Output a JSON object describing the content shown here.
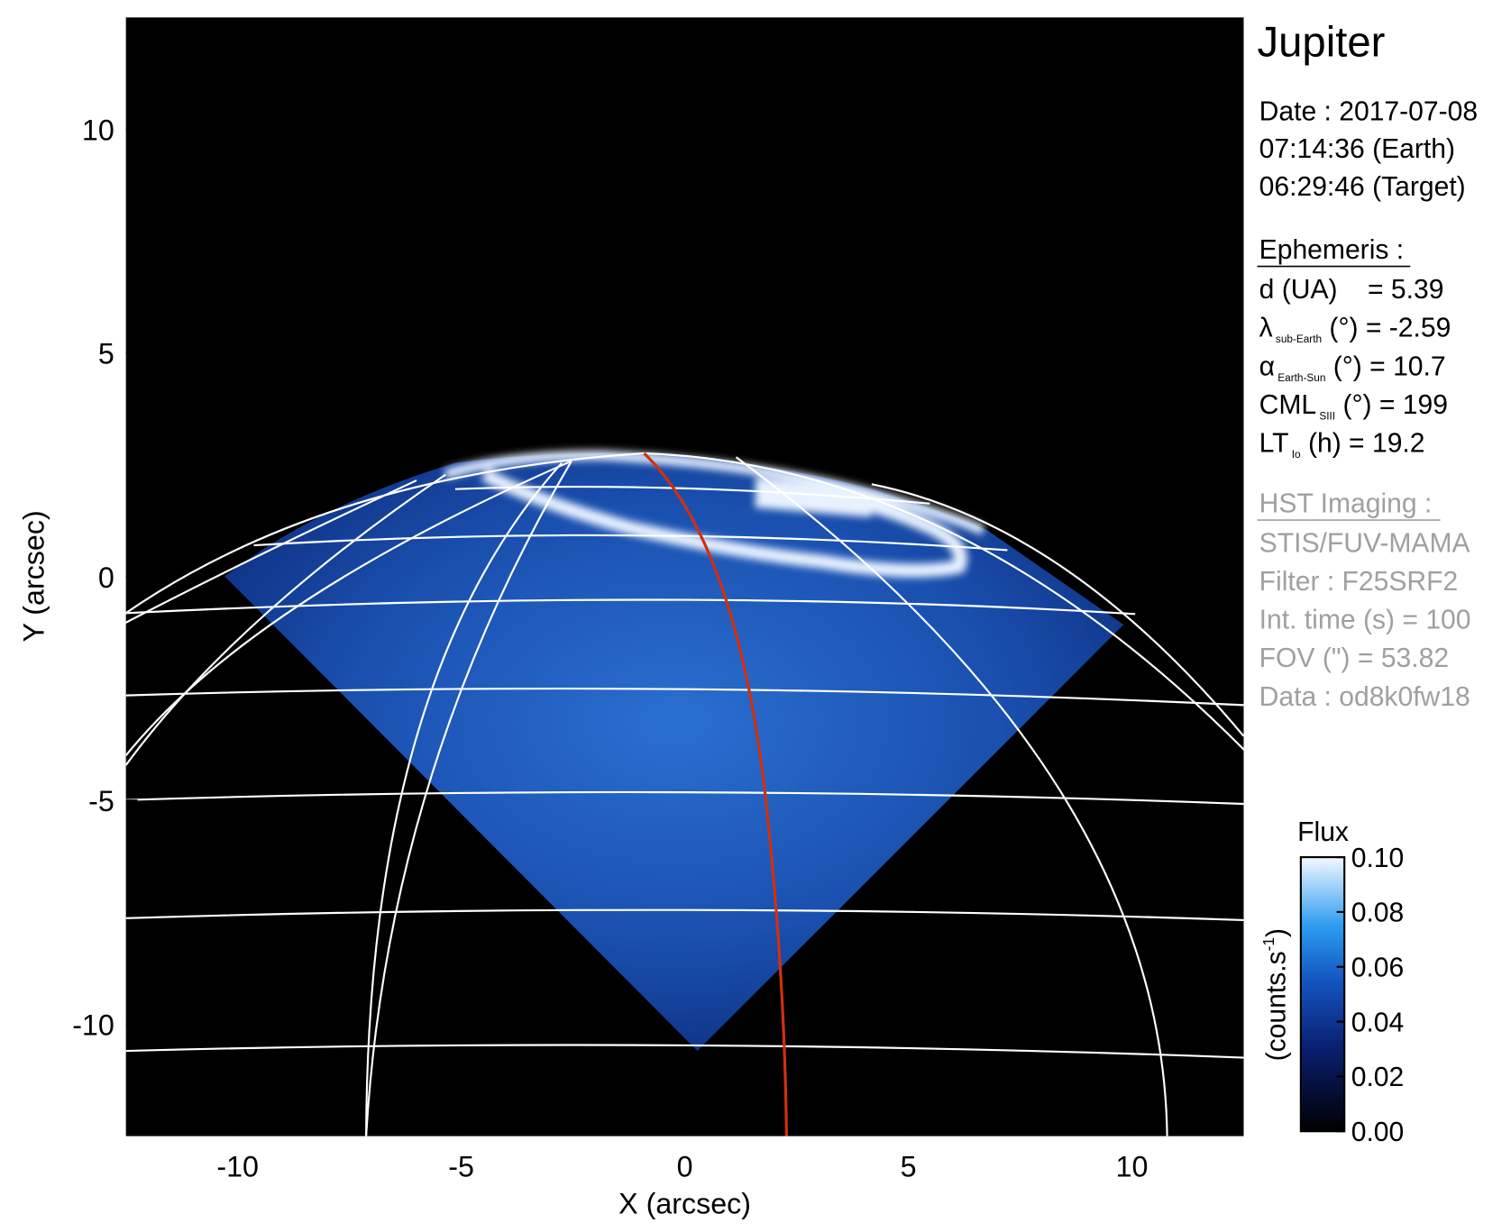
{
  "chart_data": {
    "type": "image",
    "xlabel": "X (arcsec)",
    "ylabel": "Y (arcsec)",
    "xlim": [
      -12.5,
      12.5
    ],
    "ylim": [
      -12.5,
      12.5
    ],
    "xticks": [
      -10,
      -5,
      0,
      5,
      10
    ],
    "yticks": [
      -10,
      -5,
      0,
      5,
      10
    ],
    "colorbar": {
      "title": "Flux",
      "label_parts": [
        "(counts.s",
        "-1",
        ")"
      ],
      "lim": [
        0,
        0.1
      ],
      "ticks": [
        {
          "value": 0,
          "label": "0.00"
        },
        {
          "value": 0.02,
          "label": "0.02"
        },
        {
          "value": 0.04,
          "label": "0.04"
        },
        {
          "value": 0.06,
          "label": "0.06"
        },
        {
          "value": 0.08,
          "label": "0.08"
        },
        {
          "value": 0.1,
          "label": "0.10"
        }
      ]
    }
  },
  "info": {
    "title": "Jupiter",
    "date_lines": [
      "Date : 2017-07-08",
      "07:14:36 (Earth)",
      "06:29:46 (Target)"
    ],
    "ephemeris": {
      "heading": "Ephemeris :",
      "lines": [
        {
          "text": "d (UA)    = 5.39"
        },
        {
          "symbol": "λ",
          "subscript": "sub-Earth",
          "text": " (°) = -2.59"
        },
        {
          "symbol": "α",
          "subscript": "Earth-Sun",
          "text": " (°) = 10.7"
        },
        {
          "symbol": "CML",
          "subscript": "SIII",
          "text": " (°) = 199"
        },
        {
          "symbol": "LT",
          "subscript": "Io",
          "text": " (h) = 19.2"
        }
      ]
    },
    "imaging": {
      "heading": "HST Imaging :",
      "lines": [
        "STIS/FUV-MAMA",
        "Filter : F25SRF2",
        "Int. time (s) = 100",
        "FOV (\") = 53.82",
        "Data : od8k0fw18"
      ]
    }
  }
}
